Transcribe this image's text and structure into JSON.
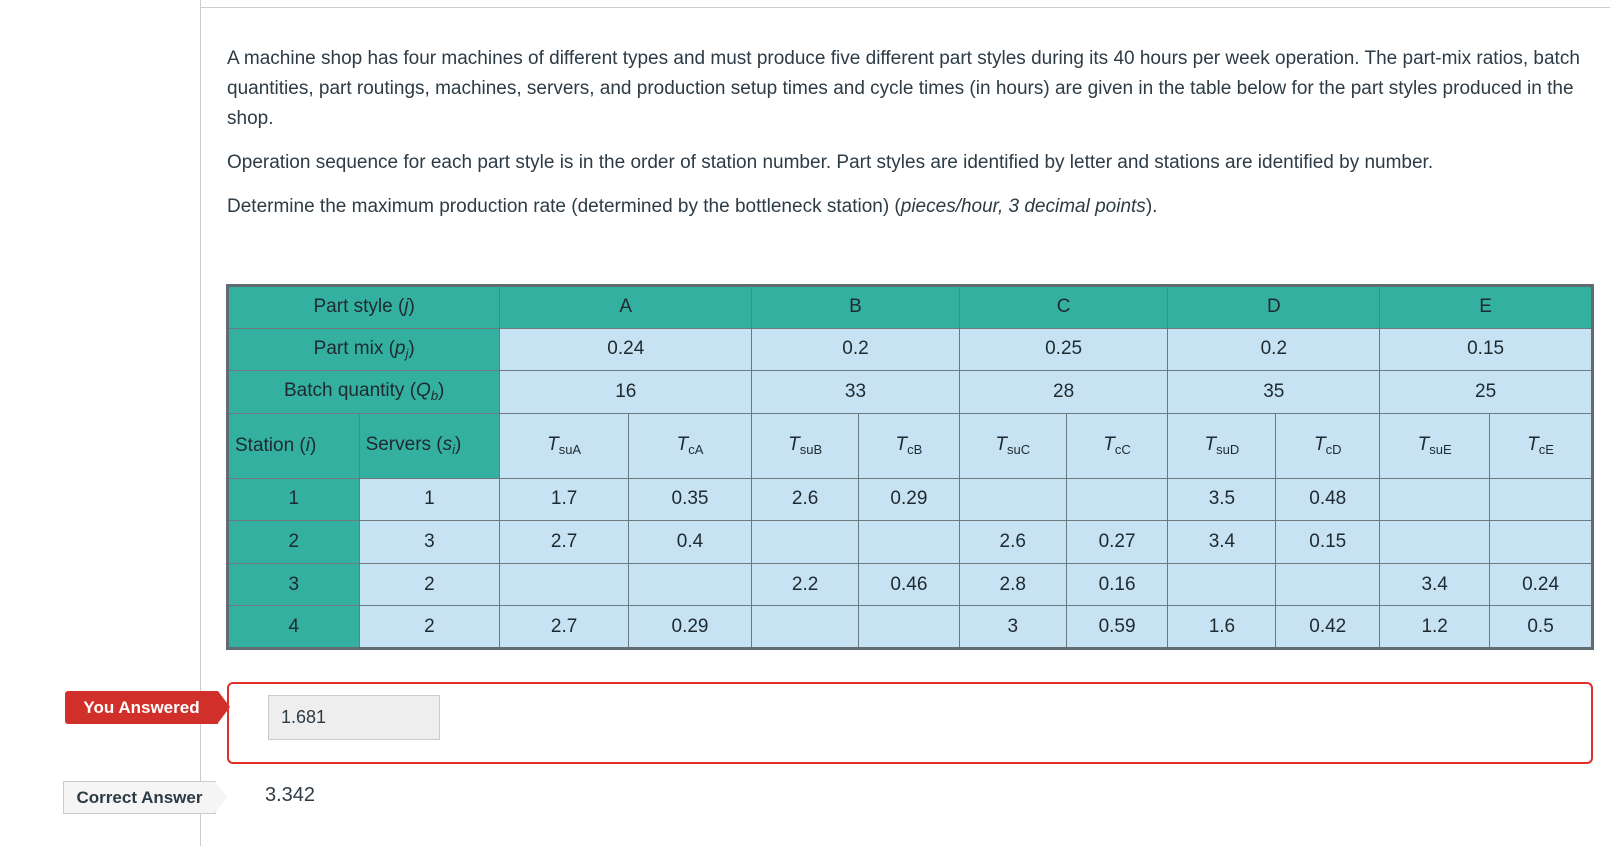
{
  "question": {
    "paragraph1": "A machine shop has four machines of different types and must produce five different part styles during its 40 hours per week operation. The part-mix ratios, batch quantities, part routings, machines, servers, and production setup times and cycle times (in hours) are given in the table below for the part styles produced in the shop.",
    "paragraph2": "Operation sequence for each part style is in the order of station number. Part styles are identified by letter and stations are identified by number.",
    "paragraph3_lead": "Determine the maximum production rate (determined by the bottleneck station) (",
    "paragraph3_italic": "pieces/hour, 3 decimal points",
    "paragraph3_tail": ")."
  },
  "table": {
    "part_style_label": "Part style (",
    "part_style_var": "j",
    "part_mix_label": "Part mix (",
    "part_mix_var": "p",
    "part_mix_sub": "j",
    "batch_label": "Batch quantity (",
    "batch_var": "Q",
    "batch_sub": "b",
    "close_paren": ")",
    "station_label": "Station (",
    "station_var": "i",
    "servers_label": "Servers (",
    "servers_var": "s",
    "servers_sub": "i",
    "styles": [
      "A",
      "B",
      "C",
      "D",
      "E"
    ],
    "part_mix": [
      "0.24",
      "0.2",
      "0.25",
      "0.2",
      "0.15"
    ],
    "batch_qty": [
      "16",
      "33",
      "28",
      "35",
      "25"
    ],
    "col_heads": [
      {
        "t": "T",
        "sub": "suA"
      },
      {
        "t": "T",
        "sub": "cA"
      },
      {
        "t": "T",
        "sub": "suB"
      },
      {
        "t": "T",
        "sub": "cB"
      },
      {
        "t": "T",
        "sub": "suC"
      },
      {
        "t": "T",
        "sub": "cC"
      },
      {
        "t": "T",
        "sub": "suD"
      },
      {
        "t": "T",
        "sub": "cD"
      },
      {
        "t": "T",
        "sub": "suE"
      },
      {
        "t": "T",
        "sub": "cE"
      }
    ],
    "rows": [
      {
        "station": "1",
        "servers": "1",
        "values": [
          "1.7",
          "0.35",
          "2.6",
          "0.29",
          "",
          "",
          "3.5",
          "0.48",
          "",
          ""
        ]
      },
      {
        "station": "2",
        "servers": "3",
        "values": [
          "2.7",
          "0.4",
          "",
          "",
          "2.6",
          "0.27",
          "3.4",
          "0.15",
          "",
          ""
        ]
      },
      {
        "station": "3",
        "servers": "2",
        "values": [
          "",
          "",
          "2.2",
          "0.46",
          "2.8",
          "0.16",
          "",
          "",
          "3.4",
          "0.24"
        ]
      },
      {
        "station": "4",
        "servers": "2",
        "values": [
          "2.7",
          "0.29",
          "",
          "",
          "3",
          "0.59",
          "1.6",
          "0.42",
          "1.2",
          "0.5"
        ]
      }
    ]
  },
  "answer": {
    "you_answered_label": "You Answered",
    "user_value": "1.681",
    "correct_label": "Correct Answer",
    "correct_value": "3.342"
  },
  "colors": {
    "header_teal": "#33b0a0",
    "cell_light_blue": "#c6e2f3",
    "wrong_red": "#d1302a"
  }
}
